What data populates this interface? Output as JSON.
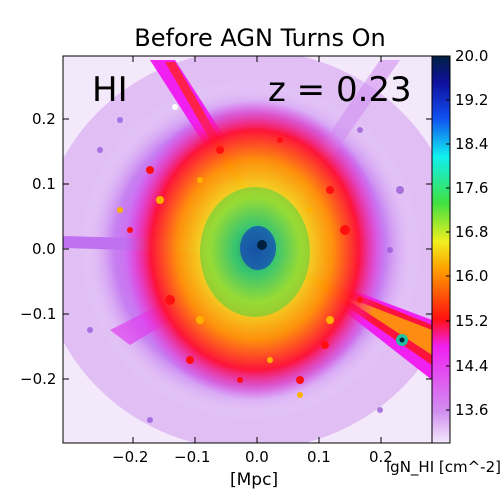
{
  "figure": {
    "title": "Before AGN Turns On",
    "species": "HI",
    "redshift": "z = 0.23",
    "xlabel": "[Mpc]",
    "colorbar_label": "lgN_HI [cm^-2]"
  },
  "axes": {
    "x_ticks": [
      "−0.2",
      "−0.1",
      "0.0",
      "0.1",
      "0.2"
    ],
    "y_ticks": [
      "0.2",
      "0.1",
      "0.0",
      "−0.1",
      "−0.2"
    ],
    "colorbar_ticks": [
      "20.0",
      "19.2",
      "18.4",
      "17.6",
      "16.8",
      "16.0",
      "15.2",
      "14.4",
      "13.6"
    ]
  },
  "colors": {
    "low": "#f4e9fb",
    "mid_low": "#c77af0",
    "magenta": "#f020f0",
    "red": "#ff1010",
    "orange": "#ff9400",
    "yellow": "#f0f020",
    "green": "#40e040",
    "cyan": "#10f0f0",
    "blue": "#1020c0",
    "high": "#002040"
  }
}
